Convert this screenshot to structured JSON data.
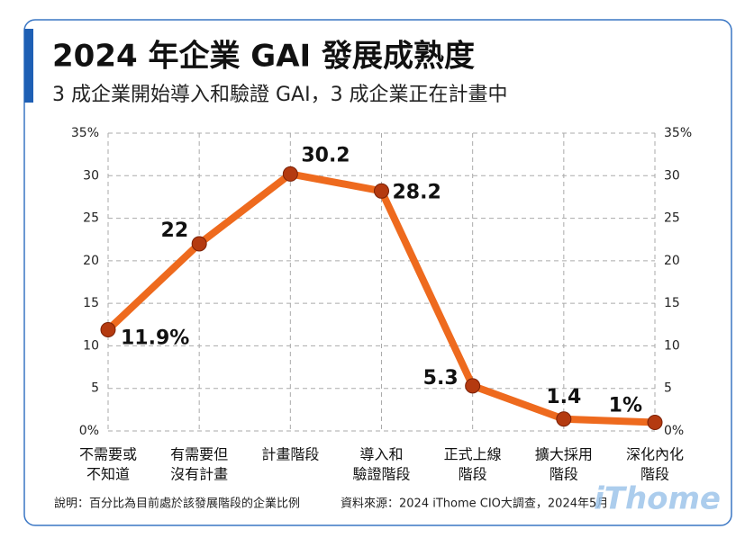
{
  "chart_data": {
    "type": "line",
    "title": "2024 年企業 GAI 發展成熟度",
    "subtitle": "3 成企業開始導入和驗證 GAI，3 成企業正在計畫中",
    "categories": [
      [
        "不需要或",
        "不知道"
      ],
      [
        "有需要但",
        "沒有計畫"
      ],
      [
        "計畫階段"
      ],
      [
        "導入和",
        "驗證階段"
      ],
      [
        "正式上線",
        "階段"
      ],
      [
        "擴大採用",
        "階段"
      ],
      [
        "深化內化",
        "階段"
      ]
    ],
    "values": [
      11.9,
      22,
      30.2,
      28.2,
      5.3,
      1.4,
      1
    ],
    "value_labels": [
      "11.9%",
      "22",
      "30.2",
      "28.2",
      "5.3",
      "1.4",
      "1%"
    ],
    "color": "#ee6a1e",
    "ylim": [
      0,
      35
    ],
    "yticks": [
      {
        "value": 0,
        "label": "0%"
      },
      5,
      10,
      15,
      20,
      25,
      30,
      {
        "value": 35,
        "label": "35%"
      }
    ],
    "grid": true,
    "note": "說明：百分比為目前處於該發展階段的企業比例",
    "source": "資料來源：2024 iThome CIO大調查，2024年5月",
    "logo": "iThome"
  }
}
